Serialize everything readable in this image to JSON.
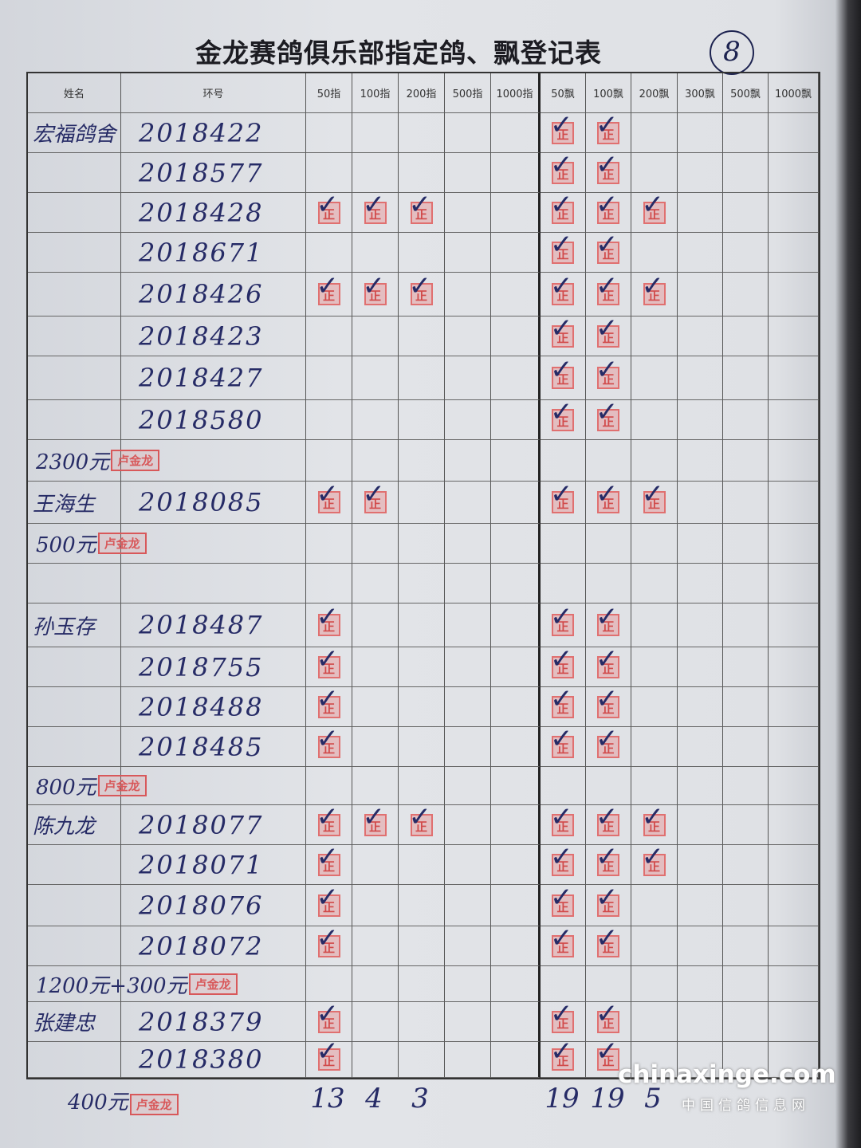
{
  "title": "金龙赛鸽俱乐部指定鸽、飘登记表",
  "page_number": "8",
  "columns": [
    "姓名",
    "环号",
    "50指",
    "100指",
    "200指",
    "500指",
    "1000指",
    "50飘",
    "100飘",
    "200飘",
    "300飘",
    "500飘",
    "1000飘"
  ],
  "stamp_text": "正",
  "rows": [
    {
      "name": "宏福鸽舍",
      "ring": "2018422",
      "marks": [
        "50飘",
        "100飘"
      ]
    },
    {
      "ring": "2018577",
      "marks": [
        "50飘",
        "100飘"
      ]
    },
    {
      "ring": "2018428",
      "marks": [
        "50指",
        "100指",
        "200指",
        "50飘",
        "100飘",
        "200飘"
      ]
    },
    {
      "ring": "2018671",
      "marks": [
        "50飘",
        "100飘"
      ]
    },
    {
      "ring": "2018426",
      "marks": [
        "50指",
        "100指",
        "200指",
        "50飘",
        "100飘",
        "200飘"
      ]
    },
    {
      "ring": "2018423",
      "marks": [
        "50飘",
        "100飘"
      ]
    },
    {
      "ring": "2018427",
      "marks": [
        "50飘",
        "100飘"
      ]
    },
    {
      "ring": "2018580",
      "marks": [
        "50飘",
        "100飘"
      ]
    },
    {
      "note": "2300元",
      "note_stamp": "卢金龙"
    },
    {
      "name": "王海生",
      "ring": "2018085",
      "marks": [
        "50指",
        "100指",
        "50飘",
        "100飘",
        "200飘"
      ]
    },
    {
      "note": "500元",
      "note_stamp": "卢金龙"
    },
    {},
    {
      "name": "孙玉存",
      "ring": "2018487",
      "marks": [
        "50指",
        "50飘",
        "100飘"
      ]
    },
    {
      "ring": "2018755",
      "marks": [
        "50指",
        "50飘",
        "100飘"
      ]
    },
    {
      "ring": "2018488",
      "marks": [
        "50指",
        "50飘",
        "100飘"
      ]
    },
    {
      "ring": "2018485",
      "marks": [
        "50指",
        "50飘",
        "100飘"
      ]
    },
    {
      "note": "800元",
      "note_stamp": "卢金龙"
    },
    {
      "name": "陈九龙",
      "ring": "2018077",
      "marks": [
        "50指",
        "100指",
        "200指",
        "50飘",
        "100飘",
        "200飘"
      ]
    },
    {
      "ring": "2018071",
      "marks": [
        "50指",
        "50飘",
        "100飘",
        "200飘"
      ]
    },
    {
      "ring": "2018076",
      "marks": [
        "50指",
        "50飘",
        "100飘"
      ]
    },
    {
      "ring": "2018072",
      "marks": [
        "50指",
        "50飘",
        "100飘"
      ]
    },
    {
      "note": "1200元+300元",
      "note_stamp": "卢金龙"
    },
    {
      "name": "张建忠",
      "ring": "2018379",
      "marks": [
        "50指",
        "50飘",
        "100飘"
      ]
    },
    {
      "ring": "2018380",
      "marks": [
        "50指",
        "50飘",
        "100飘"
      ]
    }
  ],
  "footer_note": {
    "text": "400元",
    "stamp": "卢金龙"
  },
  "totals": {
    "50指": "13",
    "100指": "4",
    "200指": "3",
    "50飘": "19",
    "100飘": "19",
    "200飘": "5"
  },
  "watermark": {
    "site": "chinaxinge.com",
    "name": "中国信鸽信息网"
  },
  "colors": {
    "ink": "#262b66",
    "stamp": "#d8585a"
  }
}
